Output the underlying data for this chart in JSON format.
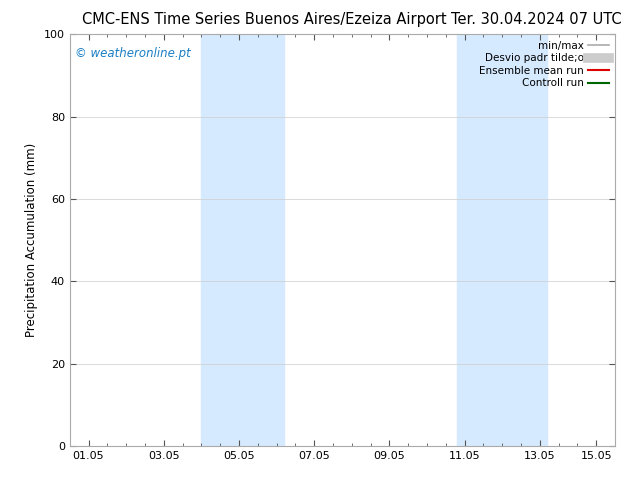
{
  "title_left": "CMC-ENS Time Series Buenos Aires/Ezeiza Airport",
  "title_right": "Ter. 30.04.2024 07 UTC",
  "ylabel": "Precipitation Accumulation (mm)",
  "watermark": "© weatheronline.pt",
  "watermark_color": "#1a7fc4",
  "ylim": [
    0,
    100
  ],
  "xlim_start": 0.0,
  "xlim_end": 14.5,
  "xtick_labels": [
    "01.05",
    "03.05",
    "05.05",
    "07.05",
    "09.05",
    "11.05",
    "13.05",
    "15.05"
  ],
  "xtick_positions": [
    0.5,
    2.5,
    4.5,
    6.5,
    8.5,
    10.5,
    12.5,
    14.0
  ],
  "ytick_positions": [
    0,
    20,
    40,
    60,
    80,
    100
  ],
  "shaded_regions": [
    {
      "x_start": 3.5,
      "x_end": 5.7,
      "color": "#d6eaff",
      "alpha": 1.0
    },
    {
      "x_start": 10.3,
      "x_end": 12.7,
      "color": "#d6eaff",
      "alpha": 1.0
    }
  ],
  "legend_items": [
    {
      "label": "min/max",
      "color": "#aaaaaa",
      "lw": 1.2,
      "ls": "-"
    },
    {
      "label": "Desvio padr tilde;o",
      "color": "#cccccc",
      "lw": 7,
      "ls": "-"
    },
    {
      "label": "Ensemble mean run",
      "color": "#dd0000",
      "lw": 1.5,
      "ls": "-"
    },
    {
      "label": "Controll run",
      "color": "#006600",
      "lw": 1.5,
      "ls": "-"
    }
  ],
  "bg_color": "#ffffff",
  "plot_bg_color": "#ffffff",
  "grid_color": "#cccccc",
  "border_color": "#aaaaaa",
  "title_fontsize": 10.5,
  "label_fontsize": 8.5,
  "tick_fontsize": 8,
  "legend_fontsize": 7.5,
  "watermark_fontsize": 8.5
}
